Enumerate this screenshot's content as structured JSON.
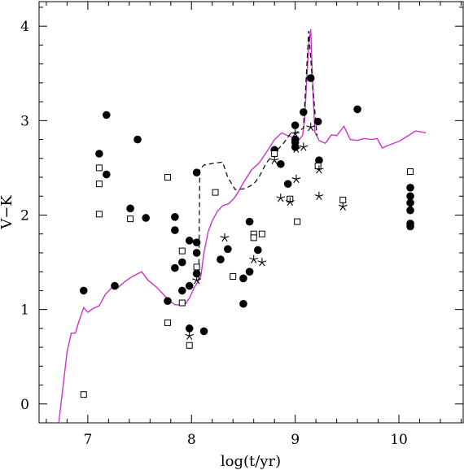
{
  "chart_data": {
    "type": "scatter",
    "xlabel": "log(t/yr)",
    "ylabel": "V−K",
    "xlim": [
      6.53,
      10.62
    ],
    "ylim": [
      -0.2,
      4.26
    ],
    "xticks": [
      "7",
      "8",
      "9",
      "10"
    ],
    "yticks": [
      "0",
      "1",
      "2",
      "3",
      "4"
    ],
    "grid": false,
    "colors": {
      "model_solid": "#cc33cc",
      "model_dashed": "#000000",
      "markers": "#000000"
    },
    "series": [
      {
        "marker": "filled-circle",
        "points": [
          [
            6.96,
            1.2
          ],
          [
            7.11,
            2.65
          ],
          [
            7.18,
            3.06
          ],
          [
            7.18,
            2.43
          ],
          [
            7.26,
            1.25
          ],
          [
            7.41,
            2.07
          ],
          [
            7.48,
            2.8
          ],
          [
            7.56,
            1.97
          ],
          [
            7.77,
            1.09
          ],
          [
            7.84,
            1.44
          ],
          [
            7.84,
            1.84
          ],
          [
            7.84,
            1.98
          ],
          [
            7.91,
            1.2
          ],
          [
            7.91,
            1.5
          ],
          [
            7.98,
            1.25
          ],
          [
            7.98,
            1.73
          ],
          [
            7.98,
            0.8
          ],
          [
            8.05,
            2.45
          ],
          [
            8.05,
            1.71
          ],
          [
            8.05,
            1.6
          ],
          [
            8.05,
            1.38
          ],
          [
            8.12,
            0.77
          ],
          [
            8.28,
            1.53
          ],
          [
            8.35,
            1.64
          ],
          [
            8.5,
            1.06
          ],
          [
            8.5,
            1.33
          ],
          [
            8.56,
            1.4
          ],
          [
            8.56,
            1.93
          ],
          [
            8.64,
            1.63
          ],
          [
            8.8,
            2.69
          ],
          [
            8.86,
            2.54
          ],
          [
            8.93,
            2.33
          ],
          [
            9.0,
            2.95
          ],
          [
            9.0,
            2.8
          ],
          [
            9.0,
            2.77
          ],
          [
            9.0,
            2.72
          ],
          [
            9.08,
            3.09
          ],
          [
            9.15,
            3.45
          ],
          [
            9.22,
            2.99
          ],
          [
            9.23,
            2.58
          ],
          [
            9.6,
            3.12
          ],
          [
            10.11,
            2.29
          ],
          [
            10.11,
            2.2
          ],
          [
            10.11,
            2.13
          ],
          [
            10.11,
            2.05
          ],
          [
            10.11,
            1.91
          ],
          [
            10.11,
            1.88
          ]
        ]
      },
      {
        "marker": "open-square",
        "points": [
          [
            6.96,
            0.1
          ],
          [
            7.11,
            2.5
          ],
          [
            7.11,
            2.33
          ],
          [
            7.11,
            2.01
          ],
          [
            7.41,
            1.96
          ],
          [
            7.77,
            2.4
          ],
          [
            7.77,
            0.86
          ],
          [
            7.91,
            1.62
          ],
          [
            7.91,
            1.07
          ],
          [
            7.98,
            0.62
          ],
          [
            8.05,
            1.45
          ],
          [
            8.23,
            2.24
          ],
          [
            8.4,
            1.35
          ],
          [
            8.6,
            1.8
          ],
          [
            8.6,
            1.76
          ],
          [
            8.68,
            1.8
          ],
          [
            8.8,
            2.65
          ],
          [
            8.95,
            2.17
          ],
          [
            9.02,
            1.93
          ],
          [
            9.22,
            2.52
          ],
          [
            9.46,
            2.16
          ],
          [
            10.11,
            2.46
          ]
        ]
      },
      {
        "marker": "star",
        "points": [
          [
            7.98,
            0.72
          ],
          [
            8.05,
            1.31
          ],
          [
            8.32,
            1.76
          ],
          [
            8.6,
            1.53
          ],
          [
            8.68,
            1.5
          ],
          [
            8.8,
            2.58
          ],
          [
            8.86,
            2.18
          ],
          [
            8.95,
            2.14
          ],
          [
            9.01,
            2.38
          ],
          [
            9.0,
            2.86
          ],
          [
            9.01,
            2.7
          ],
          [
            9.08,
            2.72
          ],
          [
            9.15,
            2.93
          ],
          [
            9.23,
            2.2
          ],
          [
            9.23,
            2.48
          ],
          [
            9.46,
            2.09
          ]
        ]
      }
    ],
    "model_solid": [
      [
        6.72,
        -0.2
      ],
      [
        6.8,
        0.55
      ],
      [
        6.84,
        0.75
      ],
      [
        6.88,
        0.75
      ],
      [
        6.91,
        0.86
      ],
      [
        6.96,
        1.02
      ],
      [
        7.0,
        0.97
      ],
      [
        7.05,
        1.01
      ],
      [
        7.11,
        1.04
      ],
      [
        7.17,
        1.16
      ],
      [
        7.23,
        1.23
      ],
      [
        7.29,
        1.23
      ],
      [
        7.35,
        1.29
      ],
      [
        7.43,
        1.35
      ],
      [
        7.52,
        1.4
      ],
      [
        7.58,
        1.31
      ],
      [
        7.66,
        1.24
      ],
      [
        7.72,
        1.17
      ],
      [
        7.78,
        1.1
      ],
      [
        7.84,
        1.05
      ],
      [
        7.9,
        1.05
      ],
      [
        7.94,
        1.06
      ],
      [
        7.98,
        1.12
      ],
      [
        8.03,
        1.24
      ],
      [
        8.07,
        1.31
      ],
      [
        8.09,
        1.35
      ],
      [
        8.12,
        1.6
      ],
      [
        8.16,
        1.82
      ],
      [
        8.2,
        1.94
      ],
      [
        8.25,
        2.04
      ],
      [
        8.3,
        2.1
      ],
      [
        8.36,
        2.12
      ],
      [
        8.42,
        2.19
      ],
      [
        8.5,
        2.34
      ],
      [
        8.58,
        2.48
      ],
      [
        8.65,
        2.55
      ],
      [
        8.72,
        2.66
      ],
      [
        8.8,
        2.8
      ],
      [
        8.87,
        2.87
      ],
      [
        8.93,
        2.84
      ],
      [
        8.99,
        2.82
      ],
      [
        9.02,
        2.83
      ],
      [
        9.04,
        2.8
      ],
      [
        9.07,
        2.84
      ],
      [
        9.09,
        3.0
      ],
      [
        9.13,
        3.8
      ],
      [
        9.15,
        3.97
      ],
      [
        9.17,
        3.35
      ],
      [
        9.19,
        2.88
      ],
      [
        9.23,
        2.79
      ],
      [
        9.29,
        2.76
      ],
      [
        9.35,
        2.85
      ],
      [
        9.4,
        2.84
      ],
      [
        9.47,
        2.94
      ],
      [
        9.53,
        2.8
      ],
      [
        9.6,
        2.79
      ],
      [
        9.66,
        2.81
      ],
      [
        9.74,
        2.8
      ],
      [
        9.79,
        2.81
      ],
      [
        9.84,
        2.71
      ],
      [
        9.9,
        2.74
      ],
      [
        10.0,
        2.78
      ],
      [
        10.09,
        2.84
      ],
      [
        10.16,
        2.89
      ],
      [
        10.22,
        2.88
      ],
      [
        10.26,
        2.87
      ]
    ],
    "model_dashed": [
      [
        8.07,
        1.31
      ],
      [
        8.08,
        2.48
      ],
      [
        8.12,
        2.53
      ],
      [
        8.22,
        2.55
      ],
      [
        8.3,
        2.56
      ],
      [
        8.35,
        2.4
      ],
      [
        8.42,
        2.27
      ],
      [
        8.52,
        2.28
      ],
      [
        8.6,
        2.33
      ],
      [
        8.65,
        2.4
      ],
      [
        8.72,
        2.55
      ],
      [
        8.8,
        2.66
      ],
      [
        8.88,
        2.75
      ],
      [
        8.96,
        2.87
      ],
      [
        9.02,
        2.88
      ],
      [
        9.08,
        2.92
      ],
      [
        9.13,
        3.95
      ],
      [
        9.17,
        3.35
      ],
      [
        9.21,
        2.84
      ]
    ]
  }
}
